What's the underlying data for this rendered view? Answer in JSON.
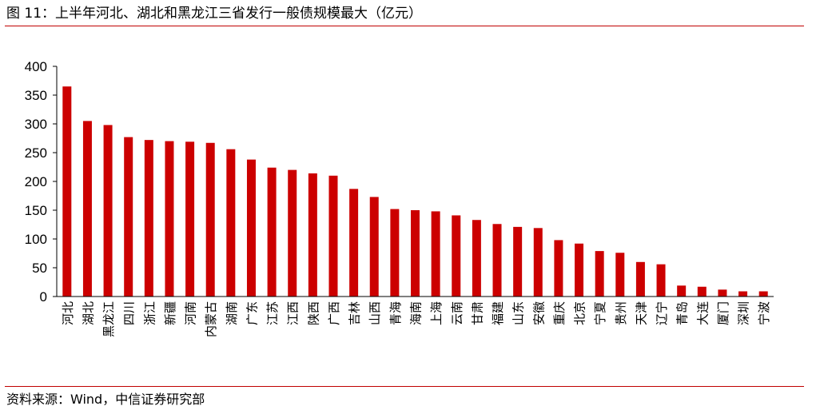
{
  "title": "图 11：上半年河北、湖北和黑龙江三省发行一般债规模最大（亿元）",
  "source": "资料来源：Wind，中信证券研究部",
  "colors": {
    "bar": "#cc0000",
    "rule": "#c00000",
    "axis": "#000000"
  },
  "chart_data": {
    "type": "bar",
    "title": "图 11：上半年河北、湖北和黑龙江三省发行一般债规模最大（亿元）",
    "xlabel": "",
    "ylabel": "",
    "ylim": [
      0,
      400
    ],
    "yticks": [
      0,
      50,
      100,
      150,
      200,
      250,
      300,
      350,
      400
    ],
    "grid": false,
    "legend": "none",
    "categories": [
      "河北",
      "湖北",
      "黑龙江",
      "四川",
      "浙江",
      "新疆",
      "河南",
      "内蒙古",
      "湖南",
      "广东",
      "江苏",
      "江西",
      "陕西",
      "广西",
      "吉林",
      "山西",
      "青海",
      "海南",
      "上海",
      "云南",
      "甘肃",
      "福建",
      "山东",
      "安徽",
      "重庆",
      "北京",
      "宁夏",
      "贵州",
      "天津",
      "辽宁",
      "青岛",
      "大连",
      "厦门",
      "深圳",
      "宁波"
    ],
    "values": [
      365,
      305,
      298,
      277,
      272,
      270,
      269,
      267,
      256,
      238,
      224,
      220,
      214,
      210,
      187,
      173,
      152,
      150,
      148,
      141,
      133,
      126,
      121,
      119,
      98,
      92,
      79,
      76,
      60,
      56,
      19,
      17,
      12,
      9,
      9
    ]
  }
}
